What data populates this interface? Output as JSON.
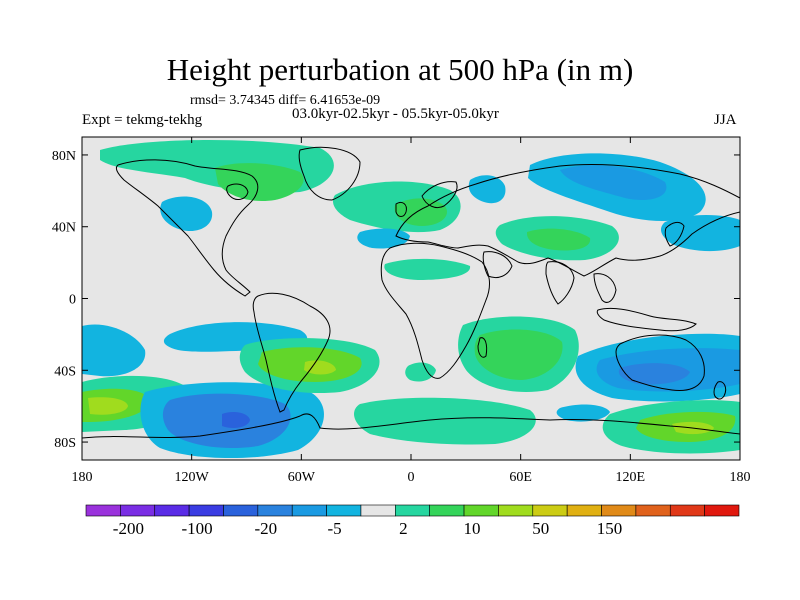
{
  "title": "Height perturbation at 500 hPa (in m)",
  "stats_text": "rmsd= 3.74345 diff= 6.41653e-09",
  "left_label": "Expt = tekmg-tekhg",
  "center_label": "03.0kyr-02.5kyr - 05.5kyr-05.0kyr",
  "right_label": "JJA",
  "map": {
    "type": "filled-contour",
    "lon_range": [
      -180,
      180
    ],
    "lat_range": [
      -90,
      90
    ],
    "background_color": "#e6e6e6",
    "coastline_color": "#000000",
    "x_ticks": [
      "180",
      "120W",
      "60W",
      "0",
      "60E",
      "120E",
      "180"
    ],
    "y_ticks": [
      "80N",
      "40N",
      "0",
      "40S",
      "80S"
    ]
  },
  "colorbar": {
    "colors": [
      "#9a32dc",
      "#7a2ee4",
      "#5a2ce6",
      "#3a3ce2",
      "#2a62dc",
      "#2a82de",
      "#1a9ae2",
      "#12b4e0",
      "#e6e6e6",
      "#26d6a0",
      "#34d45a",
      "#62d62a",
      "#a0dc1e",
      "#cccc14",
      "#e0b012",
      "#e08a18",
      "#e0621c",
      "#e03818",
      "#e0180e"
    ],
    "labels": [
      "-200",
      "-100",
      "-20",
      "-5",
      "2",
      "10",
      "50",
      "150"
    ]
  },
  "chart_data": {
    "type": "heatmap",
    "title": "Height perturbation at 500 hPa (in m)",
    "xlim": [
      -180,
      180
    ],
    "ylim": [
      -90,
      90
    ],
    "color_levels": [
      "-200",
      "-100",
      "-20",
      "-5",
      "2",
      "10",
      "50",
      "150"
    ],
    "regions": [
      {
        "lon": [
          -170,
          -80
        ],
        "lat": [
          62,
          84
        ],
        "level": "10",
        "color": "#26d6a0"
      },
      {
        "lon": [
          -110,
          -75
        ],
        "lat": [
          50,
          70
        ],
        "level": "10",
        "color": "#34d45a"
      },
      {
        "lon": [
          -25,
          40
        ],
        "lat": [
          30,
          62
        ],
        "level": "10",
        "color": "#26d6a0"
      },
      {
        "lon": [
          55,
          120
        ],
        "lat": [
          45,
          80
        ],
        "level": "-5",
        "color": "#12b4e0"
      },
      {
        "lon": [
          60,
          110
        ],
        "lat": [
          22,
          40
        ],
        "level": "10",
        "color": "#26d6a0"
      },
      {
        "lon": [
          -170,
          -120
        ],
        "lat": [
          -75,
          -48
        ],
        "level": "10",
        "color": "#62d62a"
      },
      {
        "lon": [
          -125,
          -65
        ],
        "lat": [
          -84,
          -55
        ],
        "level": "-20",
        "color": "#2a82de"
      },
      {
        "lon": [
          -75,
          -20
        ],
        "lat": [
          -50,
          -25
        ],
        "level": "10",
        "color": "#62d62a"
      },
      {
        "lon": [
          30,
          80
        ],
        "lat": [
          -48,
          -12
        ],
        "level": "10",
        "color": "#26d6a0"
      },
      {
        "lon": [
          95,
          180
        ],
        "lat": [
          -55,
          -20
        ],
        "level": "-5",
        "color": "#1a9ae2"
      },
      {
        "lon": [
          100,
          175
        ],
        "lat": [
          -82,
          -58
        ],
        "level": "10",
        "color": "#62d62a"
      }
    ]
  }
}
